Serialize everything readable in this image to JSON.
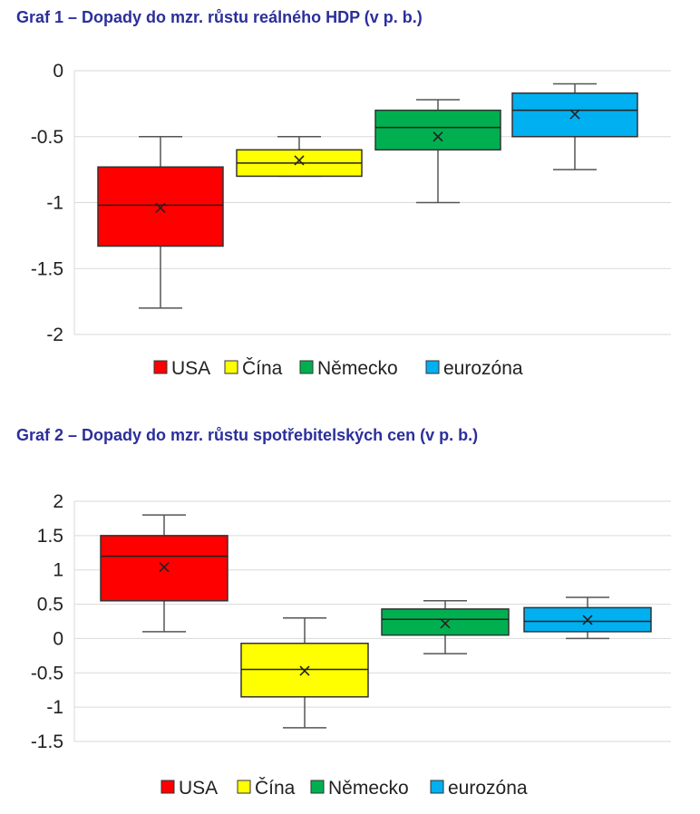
{
  "charts": [
    {
      "title": "Graf 1 – Dopady do mzr. růstu reálného HDP (v p. b.)",
      "chart_data": {
        "type": "boxplot",
        "ylim": [
          -2,
          0
        ],
        "yticks": [
          0,
          -0.5,
          -1,
          -1.5,
          -2
        ],
        "tick_labels": [
          "0",
          "-0.5",
          "-1",
          "-1.5",
          "-2"
        ],
        "grid": true,
        "legend_position": "bottom",
        "series": [
          {
            "name": "USA",
            "color": "#ff0000",
            "min": -1.8,
            "q1": -1.33,
            "median": -1.02,
            "q3": -0.73,
            "max": -0.5,
            "mean": -1.04
          },
          {
            "name": "Čína",
            "color": "#ffff00",
            "min": -0.8,
            "q1": -0.8,
            "median": -0.7,
            "q3": -0.6,
            "max": -0.5,
            "mean": -0.68
          },
          {
            "name": "Německo",
            "color": "#00b050",
            "min": -1.0,
            "q1": -0.6,
            "median": -0.43,
            "q3": -0.3,
            "max": -0.22,
            "mean": -0.5
          },
          {
            "name": "eurozóna",
            "color": "#00b0f0",
            "min": -0.75,
            "q1": -0.5,
            "median": -0.3,
            "q3": -0.17,
            "max": -0.1,
            "mean": -0.33
          }
        ]
      }
    },
    {
      "title": "Graf 2 – Dopady do mzr. růstu spotřebitelských cen (v p. b.)",
      "chart_data": {
        "type": "boxplot",
        "ylim": [
          -1.5,
          2
        ],
        "yticks": [
          2,
          1.5,
          1,
          0.5,
          0,
          -0.5,
          -1,
          -1.5
        ],
        "tick_labels": [
          "2",
          "1.5",
          "1",
          "0.5",
          "0",
          "-0.5",
          "-1",
          "-1.5"
        ],
        "grid": true,
        "legend_position": "bottom",
        "series": [
          {
            "name": "USA",
            "color": "#ff0000",
            "min": 0.1,
            "q1": 0.55,
            "median": 1.2,
            "q3": 1.5,
            "max": 1.8,
            "mean": 1.04
          },
          {
            "name": "Čína",
            "color": "#ffff00",
            "min": -1.3,
            "q1": -0.85,
            "median": -0.45,
            "q3": -0.07,
            "max": 0.3,
            "mean": -0.47
          },
          {
            "name": "Německo",
            "color": "#00b050",
            "min": -0.22,
            "q1": 0.05,
            "median": 0.28,
            "q3": 0.43,
            "max": 0.55,
            "mean": 0.22
          },
          {
            "name": "eurozóna",
            "color": "#00b0f0",
            "min": 0.0,
            "q1": 0.1,
            "median": 0.25,
            "q3": 0.45,
            "max": 0.6,
            "mean": 0.27
          }
        ]
      }
    }
  ]
}
